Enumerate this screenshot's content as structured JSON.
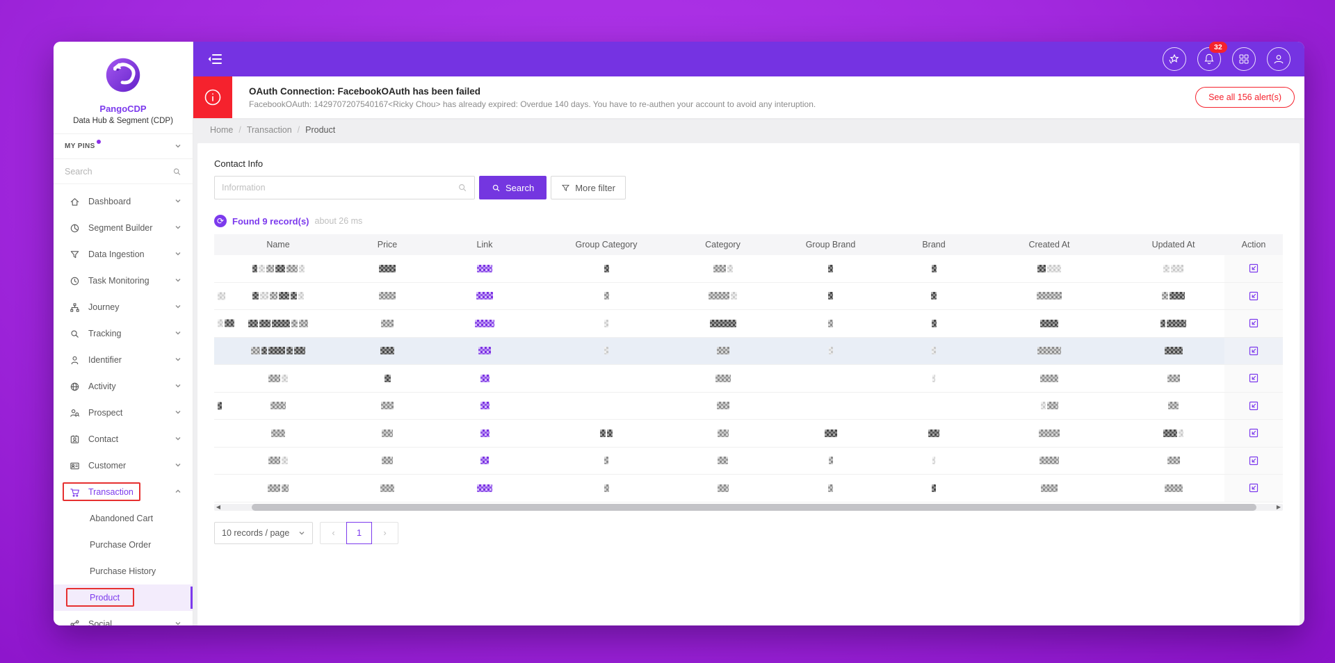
{
  "brand": {
    "name": "PangoCDP",
    "subtitle": "Data Hub & Segment (CDP)"
  },
  "colors": {
    "accent": "#7c3aed",
    "topbar": "#7533e2",
    "danger": "#f5222d",
    "bg_gradient": [
      "#b136ea",
      "#8a12c8"
    ],
    "row_highlight": "#e9eef6"
  },
  "sidebar": {
    "pins_label": "MY PINS",
    "search_placeholder": "Search",
    "items": [
      {
        "label": "Dashboard",
        "icon": "home"
      },
      {
        "label": "Segment Builder",
        "icon": "pie"
      },
      {
        "label": "Data Ingestion",
        "icon": "funnel"
      },
      {
        "label": "Task Monitoring",
        "icon": "clock"
      },
      {
        "label": "Journey",
        "icon": "journey"
      },
      {
        "label": "Tracking",
        "icon": "magnifier"
      },
      {
        "label": "Identifier",
        "icon": "user"
      },
      {
        "label": "Activity",
        "icon": "globe"
      },
      {
        "label": "Prospect",
        "icon": "user-search"
      },
      {
        "label": "Contact",
        "icon": "contact-card"
      },
      {
        "label": "Customer",
        "icon": "id-card"
      },
      {
        "label": "Transaction",
        "icon": "cart",
        "active": true,
        "expanded": true,
        "annotated": true,
        "children": [
          {
            "label": "Abandoned Cart"
          },
          {
            "label": "Purchase Order"
          },
          {
            "label": "Purchase History"
          },
          {
            "label": "Product",
            "active": true,
            "annotated": true
          }
        ]
      },
      {
        "label": "Social",
        "icon": "share",
        "partial": true
      }
    ]
  },
  "topbar": {
    "notification_count": "32"
  },
  "alert": {
    "title": "OAuth Connection: FacebookOAuth has been failed",
    "message": "FacebookOAuth: 1429707207540167<Ricky Chou> has already expired: Overdue 140 days. You have to re-authen your account to avoid any interuption.",
    "action": "See all 156 alert(s)"
  },
  "breadcrumb": [
    "Home",
    "Transaction",
    "Product"
  ],
  "filters": {
    "label": "Contact Info",
    "placeholder": "Information",
    "search_label": "Search",
    "more_label": "More filter"
  },
  "results": {
    "found": "Found 9 record(s)",
    "time": "about 26 ms"
  },
  "table": {
    "columns": [
      "Name",
      "Price",
      "Link",
      "Group Category",
      "Category",
      "Group Brand",
      "Brand",
      "Created At",
      "Updated At",
      "Action"
    ],
    "redacted": true,
    "rows": [
      {
        "name": [
          [
            7,
            "d"
          ],
          [
            9,
            "l"
          ],
          [
            11,
            "m"
          ],
          [
            14,
            "d"
          ],
          [
            16,
            "m"
          ],
          [
            8,
            "l"
          ]
        ],
        "price": [
          [
            24,
            "d"
          ]
        ],
        "link": [
          [
            22,
            "p"
          ]
        ],
        "gc": [
          [
            7,
            "d"
          ]
        ],
        "cat": [
          [
            18,
            "m"
          ],
          [
            8,
            "l"
          ]
        ],
        "gb": [
          [
            7,
            "d"
          ]
        ],
        "brand": [
          [
            7,
            "d"
          ]
        ],
        "ca": [
          [
            12,
            "d"
          ],
          [
            20,
            "l"
          ]
        ],
        "ua": [
          [
            9,
            "l"
          ],
          [
            18,
            "l"
          ]
        ]
      },
      {
        "lead": [
          [
            11,
            "l"
          ]
        ],
        "name": [
          [
            9,
            "d"
          ],
          [
            12,
            "l"
          ],
          [
            11,
            "m"
          ],
          [
            15,
            "d"
          ],
          [
            9,
            "d"
          ],
          [
            8,
            "l"
          ]
        ],
        "price": [
          [
            24,
            "m"
          ]
        ],
        "link": [
          [
            24,
            "p"
          ]
        ],
        "gc": [
          [
            7,
            "m"
          ]
        ],
        "cat": [
          [
            30,
            "m"
          ],
          [
            9,
            "l"
          ]
        ],
        "gb": [
          [
            7,
            "d"
          ]
        ],
        "brand": [
          [
            8,
            "d"
          ]
        ],
        "ca": [
          [
            36,
            "m"
          ]
        ],
        "ua": [
          [
            9,
            "m"
          ],
          [
            22,
            "d"
          ]
        ]
      },
      {
        "lead": [
          [
            8,
            "l"
          ],
          [
            14,
            "d"
          ]
        ],
        "name": [
          [
            14,
            "d"
          ],
          [
            16,
            "d"
          ],
          [
            26,
            "d"
          ],
          [
            9,
            "m"
          ],
          [
            13,
            "m"
          ]
        ],
        "price": [
          [
            18,
            "m"
          ]
        ],
        "link": [
          [
            28,
            "p"
          ]
        ],
        "gc": [
          [
            6,
            "l"
          ]
        ],
        "cat": [
          [
            38,
            "d"
          ]
        ],
        "gb": [
          [
            7,
            "m"
          ]
        ],
        "brand": [
          [
            7,
            "d"
          ]
        ],
        "ca": [
          [
            26,
            "d"
          ]
        ],
        "ua": [
          [
            7,
            "d"
          ],
          [
            28,
            "d"
          ]
        ]
      },
      {
        "highlight": true,
        "name": [
          [
            13,
            "m"
          ],
          [
            8,
            "d"
          ],
          [
            24,
            "d"
          ],
          [
            9,
            "d"
          ],
          [
            16,
            "d"
          ]
        ],
        "price": [
          [
            20,
            "d"
          ]
        ],
        "link": [
          [
            18,
            "p"
          ]
        ],
        "gc": [
          [
            6,
            "l"
          ]
        ],
        "cat": [
          [
            18,
            "m"
          ]
        ],
        "gb": [
          [
            6,
            "l"
          ]
        ],
        "brand": [
          [
            6,
            "l"
          ]
        ],
        "ca": [
          [
            34,
            "m"
          ]
        ],
        "ua": [
          [
            26,
            "d"
          ]
        ]
      },
      {
        "name": [
          [
            17,
            "m"
          ],
          [
            9,
            "l"
          ]
        ],
        "price": [
          [
            9,
            "d"
          ]
        ],
        "link": [
          [
            13,
            "p"
          ]
        ],
        "cat": [
          [
            22,
            "m"
          ]
        ],
        "brand": [
          [
            4,
            "l"
          ]
        ],
        "ca": [
          [
            26,
            "m"
          ]
        ],
        "ua": [
          [
            18,
            "m"
          ]
        ]
      },
      {
        "lead": [
          [
            6,
            "d"
          ]
        ],
        "name": [
          [
            22,
            "m"
          ]
        ],
        "price": [
          [
            18,
            "m"
          ]
        ],
        "link": [
          [
            13,
            "p"
          ]
        ],
        "cat": [
          [
            18,
            "m"
          ]
        ],
        "ca": [
          [
            7,
            "l"
          ],
          [
            16,
            "m"
          ]
        ],
        "ua": [
          [
            15,
            "m"
          ]
        ]
      },
      {
        "name": [
          [
            20,
            "m"
          ]
        ],
        "price": [
          [
            16,
            "m"
          ]
        ],
        "link": [
          [
            13,
            "p"
          ]
        ],
        "gc": [
          [
            8,
            "d"
          ],
          [
            8,
            "d"
          ]
        ],
        "cat": [
          [
            16,
            "m"
          ]
        ],
        "gb": [
          [
            18,
            "d"
          ]
        ],
        "brand": [
          [
            16,
            "d"
          ]
        ],
        "ca": [
          [
            30,
            "m"
          ]
        ],
        "ua": [
          [
            20,
            "d"
          ],
          [
            7,
            "l"
          ]
        ]
      },
      {
        "name": [
          [
            17,
            "m"
          ],
          [
            9,
            "l"
          ]
        ],
        "price": [
          [
            16,
            "m"
          ]
        ],
        "link": [
          [
            12,
            "p"
          ]
        ],
        "gc": [
          [
            6,
            "m"
          ]
        ],
        "cat": [
          [
            15,
            "m"
          ]
        ],
        "gb": [
          [
            6,
            "m"
          ]
        ],
        "brand": [
          [
            4,
            "l"
          ]
        ],
        "ca": [
          [
            28,
            "m"
          ]
        ],
        "ua": [
          [
            18,
            "m"
          ]
        ]
      },
      {
        "name": [
          [
            18,
            "m"
          ],
          [
            10,
            "m"
          ]
        ],
        "price": [
          [
            20,
            "m"
          ]
        ],
        "link": [
          [
            22,
            "p"
          ]
        ],
        "gc": [
          [
            7,
            "m"
          ]
        ],
        "cat": [
          [
            16,
            "m"
          ]
        ],
        "gb": [
          [
            7,
            "m"
          ]
        ],
        "brand": [
          [
            6,
            "d"
          ]
        ],
        "ca": [
          [
            24,
            "m"
          ]
        ],
        "ua": [
          [
            26,
            "m"
          ]
        ]
      }
    ]
  },
  "pagination": {
    "page_size": "10 records / page",
    "current": "1"
  }
}
